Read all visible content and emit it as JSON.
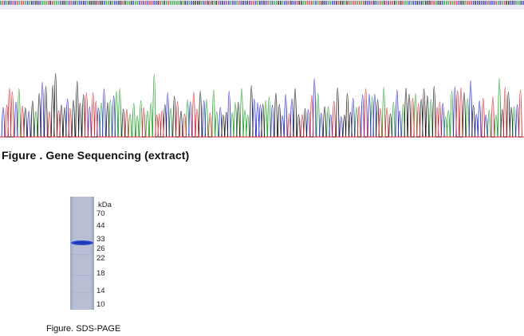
{
  "sequencing": {
    "caption": "Figure . Gene Sequencing (extract)",
    "trace_colors": {
      "A": "#1fa32a",
      "C": "#2424d8",
      "G": "#141414",
      "T": "#e0242c"
    }
  },
  "sds_page": {
    "unit_label": "kDa",
    "markers": [
      "70",
      "44",
      "33",
      "26",
      "22",
      "18",
      "14",
      "10"
    ],
    "caption": "Figure. SDS-PAGE",
    "lane_color": "#b7bed4",
    "band_color": "#2f4fcf"
  }
}
